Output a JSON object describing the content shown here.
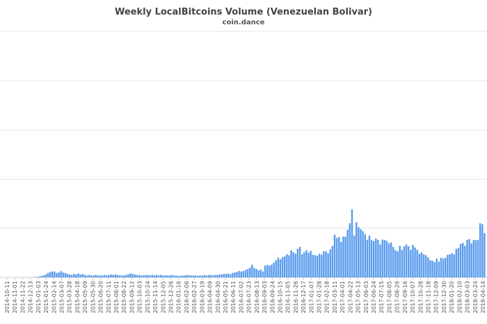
{
  "chart_data": {
    "type": "bar",
    "title": "Weekly LocalBitcoins Volume (Venezuelan Bolivar)",
    "subtitle": "coin.dance",
    "xlabel": "",
    "ylabel": "",
    "y_tick_labels_visible": false,
    "gridlines": 6,
    "grid": true,
    "legend": "none",
    "bar_color": "#5b9ced",
    "x_tick_labels": [
      "2014-10-11",
      "2014-11-01",
      "2014-11-22",
      "2014-12-13",
      "2015-01-03",
      "2015-01-24",
      "2015-02-14",
      "2015-03-07",
      "2015-03-28",
      "2015-04-18",
      "2015-05-09",
      "2015-05-30",
      "2015-06-20",
      "2015-07-11",
      "2015-08-01",
      "2015-08-22",
      "2015-09-12",
      "2015-10-03",
      "2015-10-24",
      "2015-11-14",
      "2015-12-05",
      "2015-12-26",
      "2016-01-16",
      "2016-02-06",
      "2016-02-27",
      "2016-03-19",
      "2016-04-09",
      "2016-04-30",
      "2016-05-21",
      "2016-06-11",
      "2016-07-02",
      "2016-07-23",
      "2016-08-13",
      "2016-09-03",
      "2016-09-24",
      "2016-10-15",
      "2016-11-05",
      "2016-11-26",
      "2016-12-17",
      "2017-01-07",
      "2017-01-28",
      "2017-02-18",
      "2017-03-11",
      "2017-04-01",
      "2017-04-22",
      "2017-05-13",
      "2017-06-03",
      "2017-06-24",
      "2017-07-15",
      "2017-08-05",
      "2017-08-26",
      "2017-09-16",
      "2017-10-07",
      "2017-10-28",
      "2017-11-18",
      "2017-12-09",
      "2017-12-30",
      "2018-01-20",
      "2018-02-10",
      "2018-03-03",
      "2018-03-24",
      "2018-04-14"
    ],
    "values": [
      0,
      0,
      0,
      0,
      0,
      0,
      0,
      0,
      0,
      0,
      0,
      0,
      0.5,
      1,
      1,
      2,
      3,
      4,
      6,
      9,
      11,
      12,
      12,
      9,
      10,
      13,
      10,
      9,
      7,
      6,
      5,
      7,
      6,
      8,
      6,
      7,
      5,
      4,
      5,
      4,
      4,
      5,
      4,
      4,
      4,
      5,
      4,
      5,
      6,
      5,
      6,
      5,
      4,
      4,
      4,
      5,
      6,
      8,
      7,
      6,
      5,
      5,
      4,
      4,
      5,
      5,
      4,
      5,
      4,
      5,
      4,
      5,
      4,
      4,
      4,
      4,
      5,
      4,
      4,
      3,
      3,
      4,
      4,
      5,
      4,
      4,
      4,
      4,
      3,
      4,
      4,
      5,
      4,
      5,
      5,
      4,
      5,
      5,
      6,
      6,
      7,
      7,
      8,
      6,
      9,
      10,
      11,
      13,
      12,
      13,
      15,
      17,
      20,
      26,
      19,
      17,
      14,
      16,
      12,
      24,
      25,
      24,
      26,
      30,
      35,
      40,
      37,
      41,
      43,
      47,
      45,
      55,
      51,
      48,
      58,
      62,
      47,
      51,
      55,
      50,
      54,
      46,
      45,
      44,
      48,
      46,
      53,
      53,
      49,
      57,
      64,
      87,
      80,
      82,
      72,
      83,
      83,
      97,
      110,
      138,
      85,
      112,
      102,
      98,
      94,
      88,
      76,
      85,
      76,
      74,
      79,
      76,
      67,
      77,
      76,
      74,
      69,
      71,
      62,
      55,
      53,
      64,
      56,
      63,
      67,
      63,
      56,
      66,
      61,
      56,
      48,
      51,
      47,
      45,
      41,
      35,
      34,
      31,
      38,
      32,
      40,
      38,
      40,
      46,
      47,
      49,
      47,
      58,
      60,
      68,
      70,
      64,
      76,
      78,
      69,
      76,
      76,
      76,
      110,
      108,
      90
    ]
  }
}
